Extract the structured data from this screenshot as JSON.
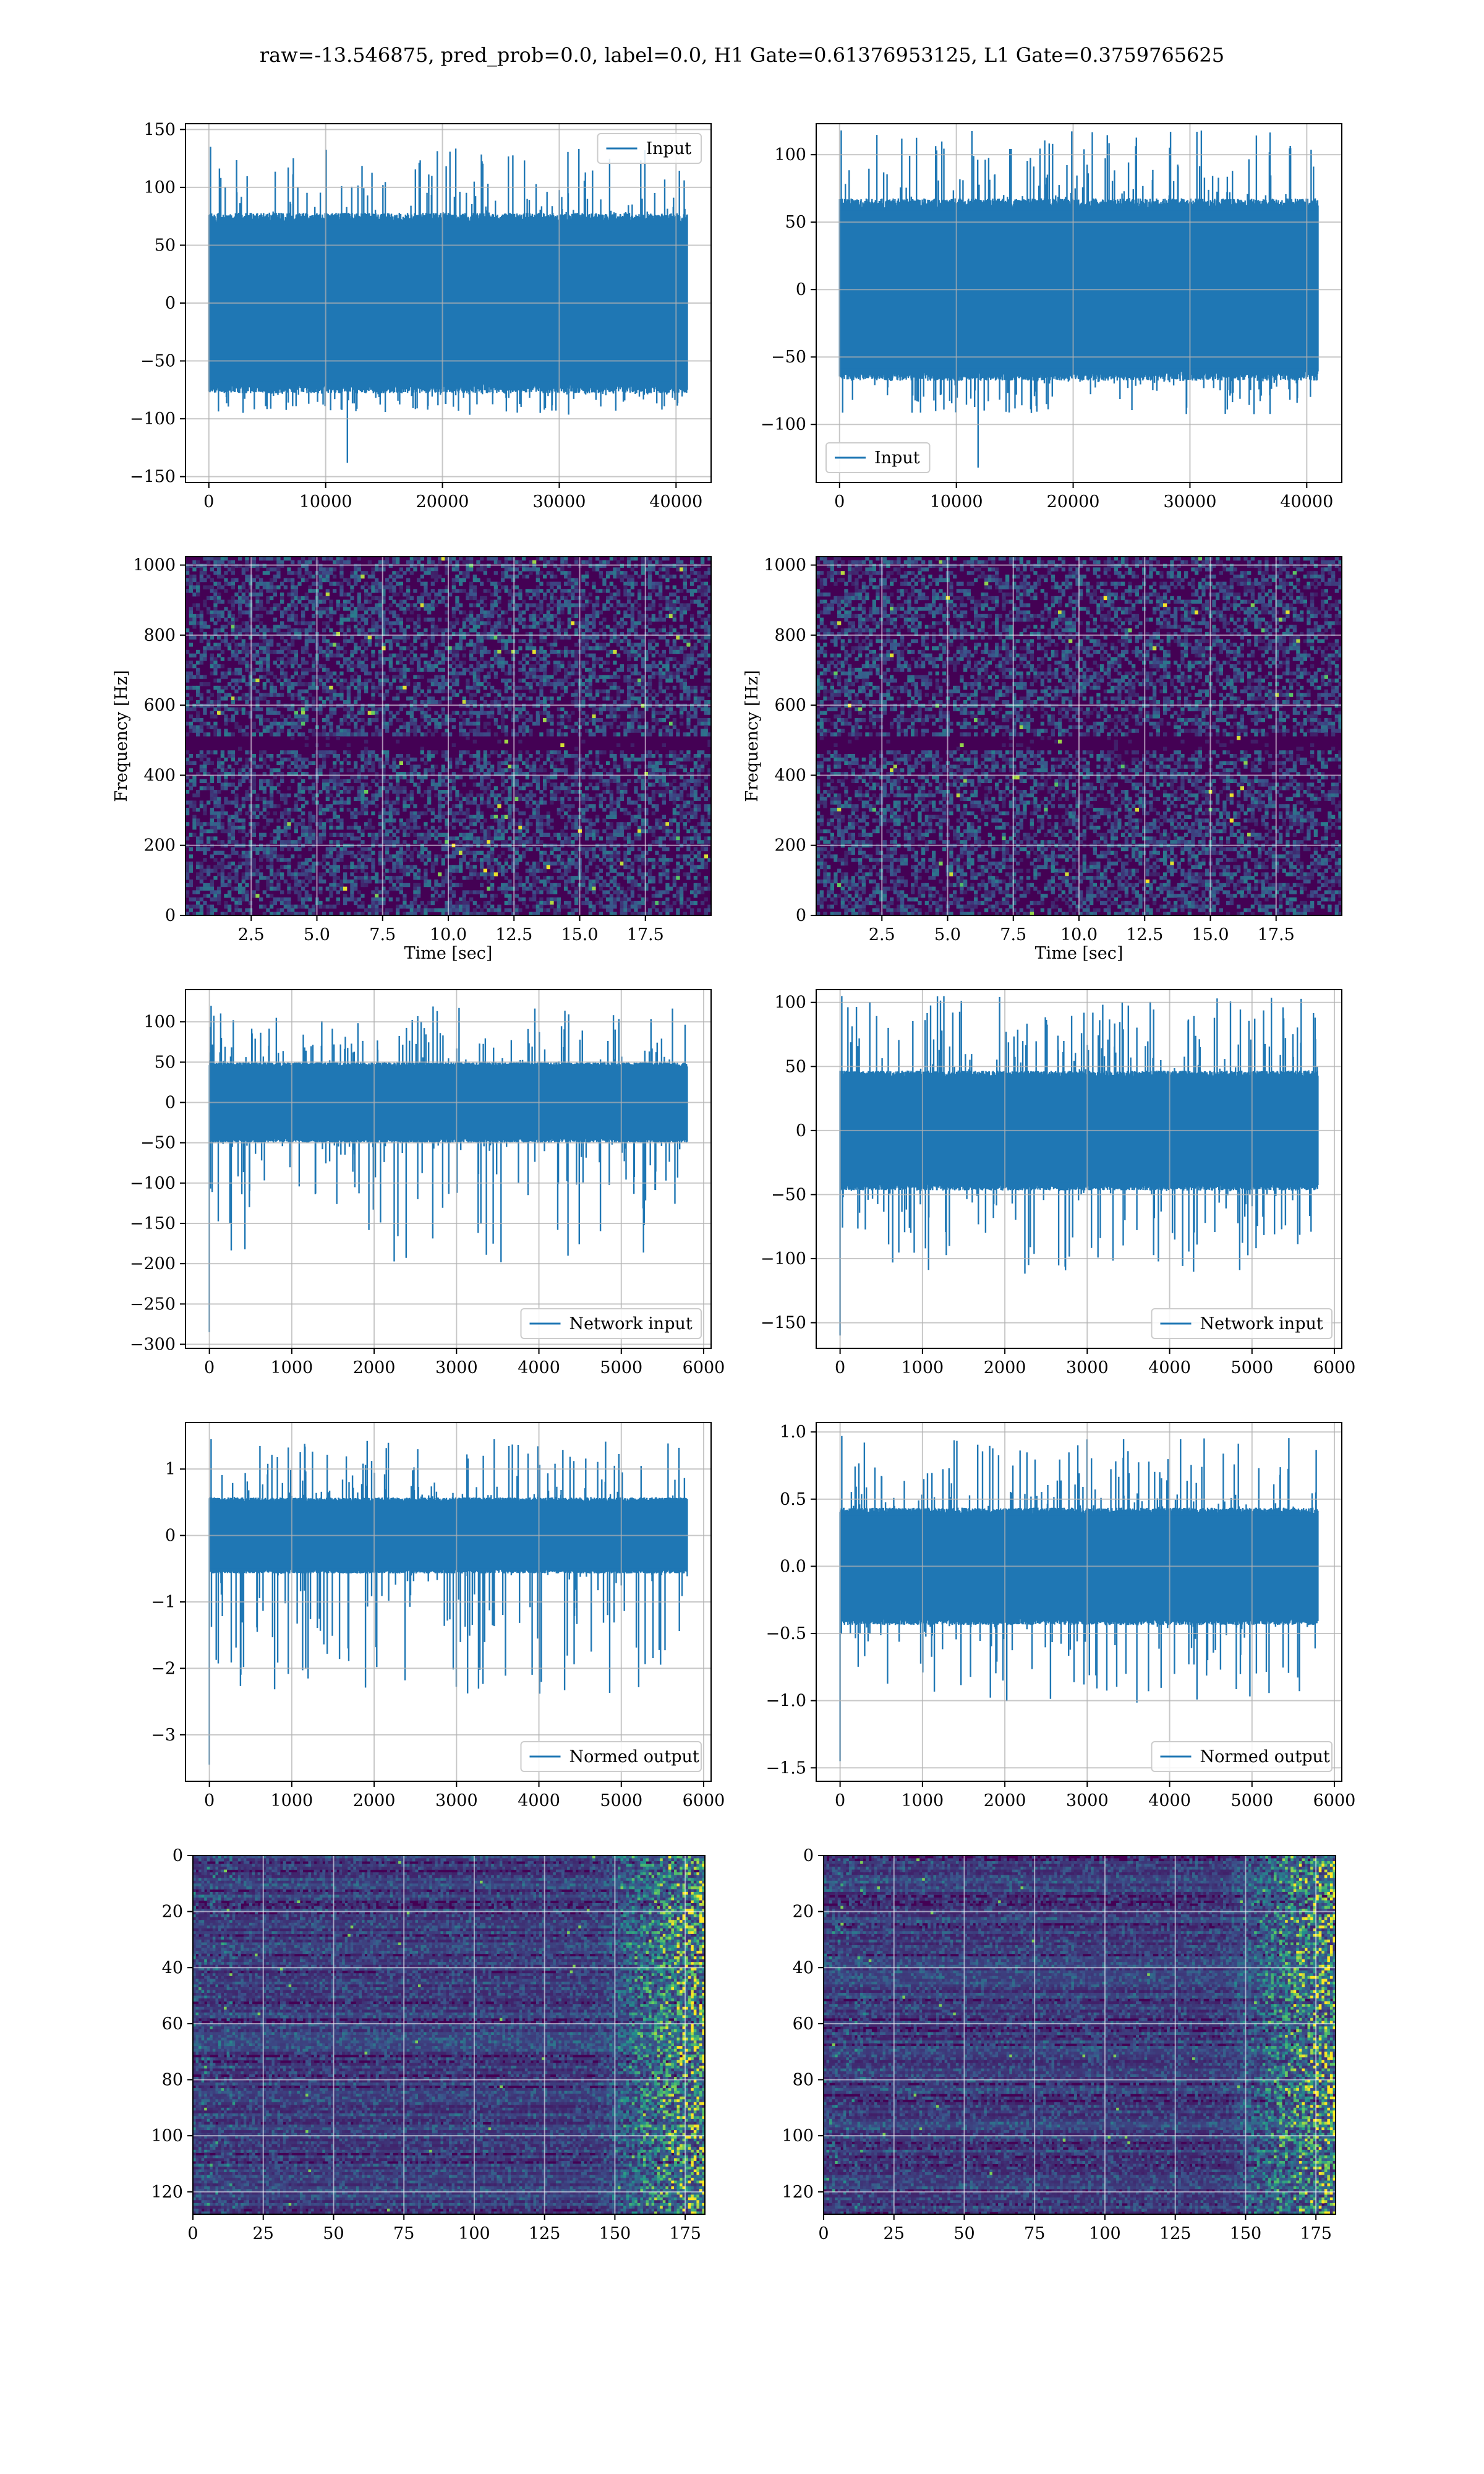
{
  "figure": {
    "suptitle": "raw=-13.546875, pred_prob=0.0, label=0.0, H1 Gate=0.61376953125, L1 Gate=0.3759765625"
  },
  "colors": {
    "line": "#1f77b4",
    "grid": "#b0b0b0",
    "viridis_low": "#440154",
    "viridis_mid": "#21918c",
    "viridis_high": "#fde725"
  },
  "chart_data": [
    {
      "id": "h1-input",
      "type": "line",
      "title": "",
      "xlabel": "",
      "ylabel": "",
      "xlim": [
        -2000,
        43000
      ],
      "ylim": [
        -155,
        155
      ],
      "xticks": [
        0,
        10000,
        20000,
        30000,
        40000
      ],
      "xtick_labels": [
        "0",
        "10000",
        "20000",
        "30000",
        "40000"
      ],
      "yticks": [
        -150,
        -100,
        -50,
        0,
        50,
        100,
        150
      ],
      "ytick_labels": [
        "−150",
        "−100",
        "−50",
        "0",
        "50",
        "100",
        "150"
      ],
      "series": [
        {
          "name": "Input",
          "n_points": 40960,
          "x_range": [
            0,
            40960
          ],
          "core_amplitude": 75,
          "peak_max": 135,
          "peak_min": -138
        }
      ],
      "legend": {
        "placement": "upper right",
        "entries": [
          "Input"
        ]
      },
      "grid": true
    },
    {
      "id": "l1-input",
      "type": "line",
      "title": "",
      "xlabel": "",
      "ylabel": "",
      "xlim": [
        -2000,
        43000
      ],
      "ylim": [
        -143,
        123
      ],
      "xticks": [
        0,
        10000,
        20000,
        30000,
        40000
      ],
      "xtick_labels": [
        "0",
        "10000",
        "20000",
        "30000",
        "40000"
      ],
      "yticks": [
        -100,
        -50,
        0,
        50,
        100
      ],
      "ytick_labels": [
        "−100",
        "−50",
        "0",
        "50",
        "100"
      ],
      "series": [
        {
          "name": "Input",
          "n_points": 40960,
          "x_range": [
            0,
            40960
          ],
          "core_amplitude": 65,
          "peak_max": 118,
          "peak_min": -132
        }
      ],
      "legend": {
        "placement": "lower left",
        "entries": [
          "Input"
        ]
      },
      "grid": true
    },
    {
      "id": "h1-spectrogram",
      "type": "heatmap",
      "title": "",
      "xlabel": "Time [sec]",
      "ylabel": "Frequency [Hz]",
      "xlim": [
        0,
        20
      ],
      "ylim": [
        0,
        1024
      ],
      "xticks": [
        2.5,
        5.0,
        7.5,
        10.0,
        12.5,
        15.0,
        17.5
      ],
      "xtick_labels": [
        "2.5",
        "5.0",
        "7.5",
        "10.0",
        "12.5",
        "15.0",
        "17.5"
      ],
      "yticks": [
        0,
        200,
        400,
        600,
        800,
        1000
      ],
      "ytick_labels": [
        "0",
        "200",
        "400",
        "600",
        "800",
        "1000"
      ],
      "colormap": "viridis",
      "notes": "dark band near 500 Hz",
      "grid": true
    },
    {
      "id": "l1-spectrogram",
      "type": "heatmap",
      "title": "",
      "xlabel": "Time [sec]",
      "ylabel": "Frequency [Hz]",
      "xlim": [
        0,
        20
      ],
      "ylim": [
        0,
        1024
      ],
      "xticks": [
        2.5,
        5.0,
        7.5,
        10.0,
        12.5,
        15.0,
        17.5
      ],
      "xtick_labels": [
        "2.5",
        "5.0",
        "7.5",
        "10.0",
        "12.5",
        "15.0",
        "17.5"
      ],
      "yticks": [
        0,
        200,
        400,
        600,
        800,
        1000
      ],
      "ytick_labels": [
        "0",
        "200",
        "400",
        "600",
        "800",
        "1000"
      ],
      "colormap": "viridis",
      "notes": "dark band near 500 Hz",
      "grid": true
    },
    {
      "id": "h1-network-input",
      "type": "line",
      "title": "",
      "xlabel": "",
      "ylabel": "",
      "xlim": [
        -290,
        6090
      ],
      "ylim": [
        -305,
        140
      ],
      "xticks": [
        0,
        1000,
        2000,
        3000,
        4000,
        5000,
        6000
      ],
      "xtick_labels": [
        "0",
        "1000",
        "2000",
        "3000",
        "4000",
        "5000",
        "6000"
      ],
      "yticks": [
        -300,
        -250,
        -200,
        -150,
        -100,
        -50,
        0,
        50,
        100
      ],
      "ytick_labels": [
        "−300",
        "−250",
        "−200",
        "−150",
        "−100",
        "−50",
        "0",
        "50",
        "100"
      ],
      "series": [
        {
          "name": "Network input",
          "n_points": 5800,
          "x_range": [
            0,
            5800
          ],
          "core_amplitude": 48,
          "peak_max": 120,
          "peak_min": -285
        }
      ],
      "legend": {
        "placement": "lower right",
        "entries": [
          "Network input"
        ]
      },
      "grid": true
    },
    {
      "id": "l1-network-input",
      "type": "line",
      "title": "",
      "xlabel": "",
      "ylabel": "",
      "xlim": [
        -290,
        6090
      ],
      "ylim": [
        -170,
        110
      ],
      "xticks": [
        0,
        1000,
        2000,
        3000,
        4000,
        5000,
        6000
      ],
      "xtick_labels": [
        "0",
        "1000",
        "2000",
        "3000",
        "4000",
        "5000",
        "6000"
      ],
      "yticks": [
        -150,
        -100,
        -50,
        0,
        50,
        100
      ],
      "ytick_labels": [
        "−150",
        "−100",
        "−50",
        "0",
        "50",
        "100"
      ],
      "series": [
        {
          "name": "Network input",
          "n_points": 5800,
          "x_range": [
            0,
            5800
          ],
          "core_amplitude": 45,
          "peak_max": 105,
          "peak_min": -160
        }
      ],
      "legend": {
        "placement": "lower right",
        "entries": [
          "Network input"
        ]
      },
      "grid": true
    },
    {
      "id": "h1-normed-output",
      "type": "line",
      "title": "",
      "xlabel": "",
      "ylabel": "",
      "xlim": [
        -290,
        6090
      ],
      "ylim": [
        -3.7,
        1.7
      ],
      "xticks": [
        0,
        1000,
        2000,
        3000,
        4000,
        5000,
        6000
      ],
      "xtick_labels": [
        "0",
        "1000",
        "2000",
        "3000",
        "4000",
        "5000",
        "6000"
      ],
      "yticks": [
        -3,
        -2,
        -1,
        0,
        1
      ],
      "ytick_labels": [
        "−3",
        "−2",
        "−1",
        "0",
        "1"
      ],
      "series": [
        {
          "name": "Normed output",
          "n_points": 5800,
          "x_range": [
            0,
            5800
          ],
          "core_amplitude": 0.55,
          "peak_max": 1.45,
          "peak_min": -3.45
        }
      ],
      "legend": {
        "placement": "lower right",
        "entries": [
          "Normed output"
        ]
      },
      "grid": true
    },
    {
      "id": "l1-normed-output",
      "type": "line",
      "title": "",
      "xlabel": "",
      "ylabel": "",
      "xlim": [
        -290,
        6090
      ],
      "ylim": [
        -1.6,
        1.07
      ],
      "xticks": [
        0,
        1000,
        2000,
        3000,
        4000,
        5000,
        6000
      ],
      "xtick_labels": [
        "0",
        "1000",
        "2000",
        "3000",
        "4000",
        "5000",
        "6000"
      ],
      "yticks": [
        -1.5,
        -1.0,
        -0.5,
        0.0,
        0.5,
        1.0
      ],
      "ytick_labels": [
        "−1.5",
        "−1.0",
        "−0.5",
        "0.0",
        "0.5",
        "1.0"
      ],
      "series": [
        {
          "name": "Normed output",
          "n_points": 5800,
          "x_range": [
            0,
            5800
          ],
          "core_amplitude": 0.42,
          "peak_max": 0.97,
          "peak_min": -1.45
        }
      ],
      "legend": {
        "placement": "lower right",
        "entries": [
          "Normed output"
        ]
      },
      "grid": true
    },
    {
      "id": "h1-feature-map",
      "type": "heatmap",
      "title": "",
      "xlabel": "",
      "ylabel": "",
      "xlim": [
        0,
        182
      ],
      "ylim": [
        128,
        0
      ],
      "xticks": [
        0,
        25,
        50,
        75,
        100,
        125,
        150,
        175
      ],
      "xtick_labels": [
        "0",
        "25",
        "50",
        "75",
        "100",
        "125",
        "150",
        "175"
      ],
      "yticks": [
        0,
        20,
        40,
        60,
        80,
        100,
        120
      ],
      "ytick_labels": [
        "0",
        "20",
        "40",
        "60",
        "80",
        "100",
        "120"
      ],
      "colormap": "viridis",
      "notes": "bright activations toward right edge",
      "grid": true
    },
    {
      "id": "l1-feature-map",
      "type": "heatmap",
      "title": "",
      "xlabel": "",
      "ylabel": "",
      "xlim": [
        0,
        182
      ],
      "ylim": [
        128,
        0
      ],
      "xticks": [
        0,
        25,
        50,
        75,
        100,
        125,
        150,
        175
      ],
      "xtick_labels": [
        "0",
        "25",
        "50",
        "75",
        "100",
        "125",
        "150",
        "175"
      ],
      "yticks": [
        0,
        20,
        40,
        60,
        80,
        100,
        120
      ],
      "ytick_labels": [
        "0",
        "20",
        "40",
        "60",
        "80",
        "100",
        "120"
      ],
      "colormap": "viridis",
      "notes": "bright activations toward right edge",
      "grid": true
    }
  ]
}
